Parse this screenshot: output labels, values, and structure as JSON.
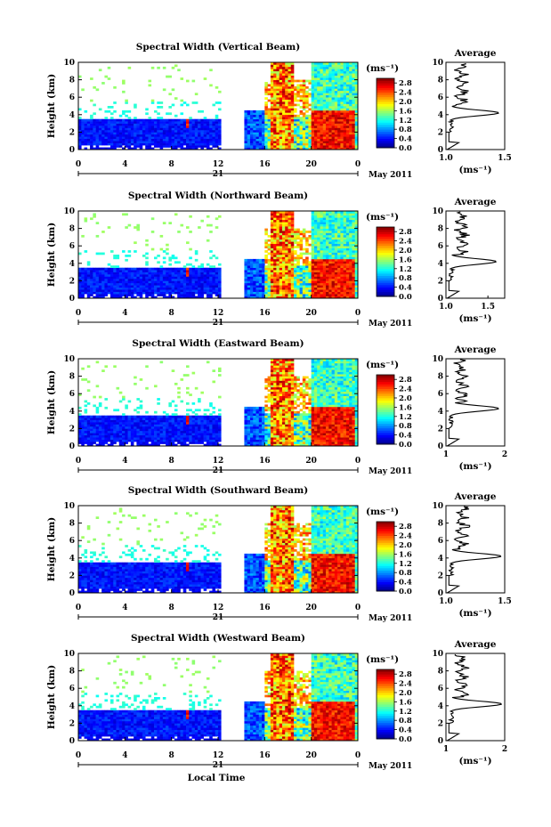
{
  "chart_data": [
    {
      "type": "heatmap",
      "title": "Spectral Width (Vertical Beam)",
      "ylabel": "Height (km)",
      "ylim": [
        0,
        10
      ],
      "yticks": [
        "0",
        "2",
        "4",
        "6",
        "8",
        "10"
      ],
      "xticks": [
        "0",
        "4",
        "8",
        "12",
        "16",
        "20",
        "0"
      ],
      "xlim_hours": [
        0,
        24
      ],
      "date_day": "21",
      "date_month": "May 2011",
      "colorbar": {
        "unit": "(ms⁻¹)",
        "ticks": [
          "0.0",
          "0.4",
          "0.8",
          "1.2",
          "1.6",
          "2.0",
          "2.4",
          "2.8"
        ],
        "range": [
          0,
          3.0
        ],
        "colormap": "jet"
      },
      "average": {
        "title": "Average",
        "xlabel": "(ms⁻¹)",
        "xticks": [
          "1.0",
          "1.5"
        ],
        "xlim": [
          1.0,
          1.5
        ],
        "peak": {
          "height": 4.2,
          "value": 1.45
        }
      }
    },
    {
      "type": "heatmap",
      "title": "Spectral Width (Northward Beam)",
      "ylabel": "Height (km)",
      "ylim": [
        0,
        10
      ],
      "yticks": [
        "0",
        "2",
        "4",
        "6",
        "8",
        "10"
      ],
      "xticks": [
        "0",
        "4",
        "8",
        "12",
        "16",
        "20",
        "0"
      ],
      "xlim_hours": [
        0,
        24
      ],
      "date_day": "21",
      "date_month": "May 2011",
      "colorbar": {
        "unit": "(ms⁻¹)",
        "ticks": [
          "0.0",
          "0.4",
          "0.8",
          "1.2",
          "1.6",
          "2.0",
          "2.4",
          "2.8"
        ],
        "range": [
          0,
          3.0
        ],
        "colormap": "jet"
      },
      "average": {
        "title": "Average",
        "xlabel": "(ms⁻¹)",
        "xticks": [
          "1.0",
          "1.5"
        ],
        "xlim": [
          1.0,
          1.7
        ],
        "peak": {
          "height": 4.2,
          "value": 1.6
        }
      }
    },
    {
      "type": "heatmap",
      "title": "Spectral Width (Eastward Beam)",
      "ylabel": "Height (km)",
      "ylim": [
        0,
        10
      ],
      "yticks": [
        "0",
        "2",
        "4",
        "6",
        "8",
        "10"
      ],
      "xticks": [
        "0",
        "4",
        "8",
        "12",
        "16",
        "20",
        "0"
      ],
      "xlim_hours": [
        0,
        24
      ],
      "date_day": "21",
      "date_month": "May 2011",
      "colorbar": {
        "unit": "(ms⁻¹)",
        "ticks": [
          "0.0",
          "0.4",
          "0.8",
          "1.2",
          "1.6",
          "2.0",
          "2.4",
          "2.8"
        ],
        "range": [
          0,
          3.0
        ],
        "colormap": "jet"
      },
      "average": {
        "title": "Average",
        "xlabel": "(ms⁻¹)",
        "xticks": [
          "1",
          "2"
        ],
        "xlim": [
          1.0,
          2.0
        ],
        "peak": {
          "height": 4.3,
          "value": 1.9
        }
      }
    },
    {
      "type": "heatmap",
      "title": "Spectral Width (Southward Beam)",
      "ylabel": "Height (km)",
      "ylim": [
        0,
        10
      ],
      "yticks": [
        "0",
        "2",
        "4",
        "6",
        "8",
        "10"
      ],
      "xticks": [
        "0",
        "4",
        "8",
        "12",
        "16",
        "20",
        "0"
      ],
      "xlim_hours": [
        0,
        24
      ],
      "date_day": "21",
      "date_month": "May 2011",
      "colorbar": {
        "unit": "(ms⁻¹)",
        "ticks": [
          "0.0",
          "0.4",
          "0.8",
          "1.2",
          "1.6",
          "2.0",
          "2.4",
          "2.8"
        ],
        "range": [
          0,
          3.0
        ],
        "colormap": "jet"
      },
      "average": {
        "title": "Average",
        "xlabel": "(ms⁻¹)",
        "xticks": [
          "1.0",
          "1.5"
        ],
        "xlim": [
          1.0,
          1.5
        ],
        "peak": {
          "height": 4.2,
          "value": 1.47
        }
      }
    },
    {
      "type": "heatmap",
      "title": "Spectral Width (Westward Beam)",
      "ylabel": "Height (km)",
      "ylim": [
        0,
        10
      ],
      "yticks": [
        "0",
        "2",
        "4",
        "6",
        "8",
        "10"
      ],
      "xticks": [
        "0",
        "4",
        "8",
        "12",
        "16",
        "20",
        "0"
      ],
      "xlim_hours": [
        0,
        24
      ],
      "date_day": "21",
      "date_month": "May 2011",
      "xlabel": "Local Time",
      "colorbar": {
        "unit": "(ms⁻¹)",
        "ticks": [
          "0.0",
          "0.4",
          "0.8",
          "1.2",
          "1.6",
          "2.0",
          "2.4",
          "2.8"
        ],
        "range": [
          0,
          3.0
        ],
        "colormap": "jet"
      },
      "average": {
        "title": "Average",
        "xlabel": "(ms⁻¹)",
        "xticks": [
          "1",
          "2"
        ],
        "xlim": [
          1.0,
          2.0
        ],
        "peak": {
          "height": 4.2,
          "value": 1.95
        }
      }
    }
  ]
}
